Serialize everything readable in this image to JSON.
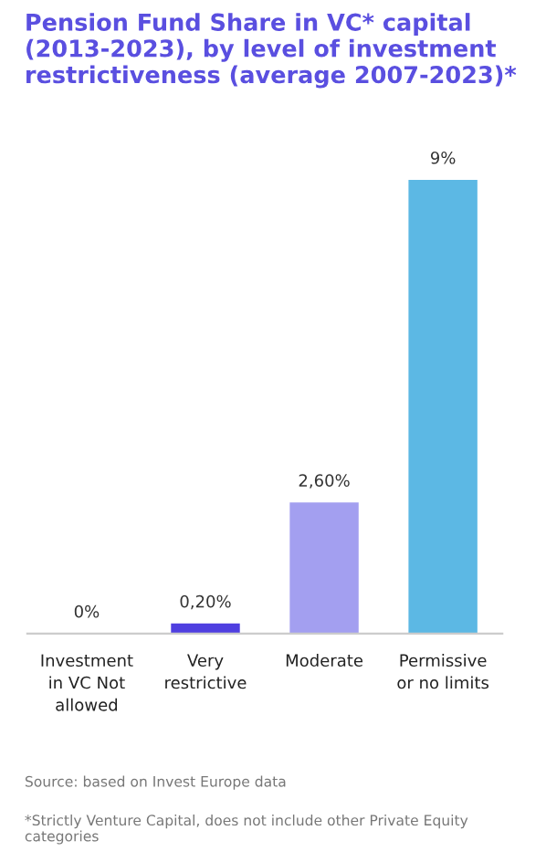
{
  "chart_data": {
    "type": "bar",
    "title": "Pension Fund Share in VC* capital (2013-2023), by level of investment restrictiveness (average 2007-2023)*",
    "categories": [
      "Investment in VC Not allowed",
      "Very restrictive",
      "Moderate",
      "Permissive or no limits"
    ],
    "values": [
      0,
      0.2,
      2.6,
      9
    ],
    "colors": [
      "#4f3fe0",
      "#4f3fe0",
      "#a39ff0",
      "#5cb8e4"
    ],
    "value_labels": [
      "0%",
      "0,20%",
      "2,60%",
      "9%"
    ],
    "tick_labels": "x",
    "grid": false,
    "legend": false,
    "annotations": [
      "Source: based on Invest Europe data",
      "*Strictly Venture Capital, does not include other Private Equity categories"
    ]
  }
}
